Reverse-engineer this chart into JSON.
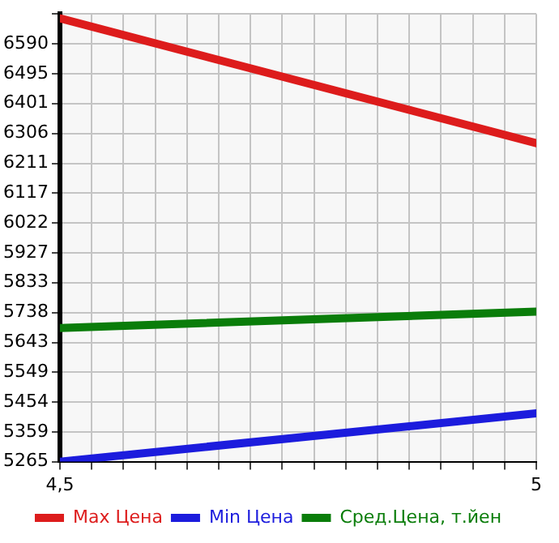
{
  "chart_data": {
    "type": "line",
    "x": [
      4.5,
      5
    ],
    "series": [
      {
        "name": "Max Цена",
        "color": "#dd1c1c",
        "values": [
          6671,
          6275
        ]
      },
      {
        "name": "Min Цена",
        "color": "#1c1cdd",
        "values": [
          5265,
          5418
        ]
      },
      {
        "name": "Сред.Цена, т.йен",
        "color": "#0a7d0a",
        "values": [
          5689,
          5741
        ]
      }
    ],
    "xlim": [
      4.5,
      5
    ],
    "xticks": [
      {
        "value": 4.5,
        "label": "4,5"
      },
      {
        "value": 4.5333,
        "label": null
      },
      {
        "value": 4.5667,
        "label": null
      },
      {
        "value": 4.6,
        "label": null
      },
      {
        "value": 4.6333,
        "label": null
      },
      {
        "value": 4.6667,
        "label": null
      },
      {
        "value": 4.7,
        "label": null
      },
      {
        "value": 4.7333,
        "label": null
      },
      {
        "value": 4.7667,
        "label": null
      },
      {
        "value": 4.8,
        "label": null
      },
      {
        "value": 4.8333,
        "label": null
      },
      {
        "value": 4.8667,
        "label": null
      },
      {
        "value": 4.9,
        "label": null
      },
      {
        "value": 4.9333,
        "label": null
      },
      {
        "value": 4.9667,
        "label": null
      },
      5
    ],
    "ylim": [
      5265,
      6685
    ],
    "yticks": [
      5265,
      5359,
      5454,
      5549,
      5643,
      5738,
      5833,
      5927,
      6022,
      6117,
      6211,
      6306,
      6401,
      6495,
      6590,
      {
        "value": 6685,
        "label": null
      }
    ],
    "grid": true,
    "legend": "bottom",
    "marker": "none",
    "line_style": "solid"
  }
}
